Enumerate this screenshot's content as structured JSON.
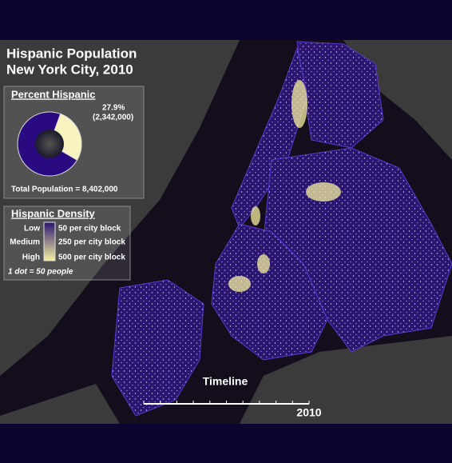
{
  "title": [
    "Hispanic Population",
    "New York City, 2010"
  ],
  "percent": {
    "heading": "Percent Hispanic",
    "share": {
      "value": 27.9,
      "label": "27.9%"
    },
    "hispanic": {
      "value": 2342000,
      "label": "(2,342,000)"
    },
    "total": {
      "value": 8402000,
      "label": "Total Population = 8,402,000"
    }
  },
  "density": {
    "heading": "Hispanic Density",
    "rows": [
      {
        "level": "Low",
        "label": "50 per city block"
      },
      {
        "level": "Medium",
        "label": "250 per city block"
      },
      {
        "level": "High",
        "label": "500 per city block"
      }
    ],
    "note": "1 dot = 50 people"
  },
  "timeline": {
    "label": "Timeline",
    "year": "2010"
  }
}
